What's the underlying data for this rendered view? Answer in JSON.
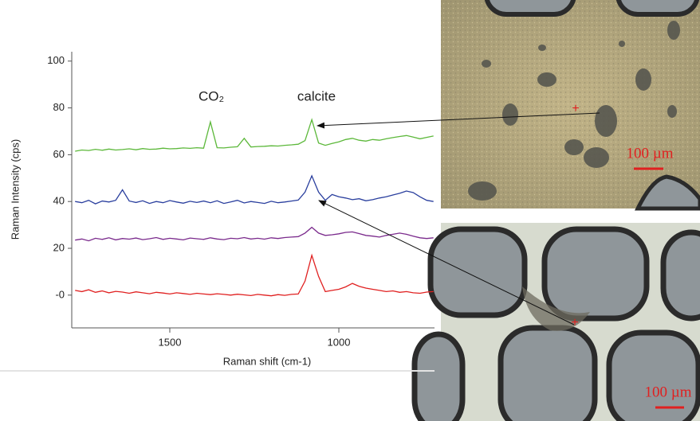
{
  "chart_data": {
    "type": "line",
    "ylabel": "Raman Intensity (cps)",
    "xlabel": "Raman shift (cm-1)",
    "annotations": [
      "CO₂",
      "calcite"
    ],
    "x": [
      1780,
      1760,
      1740,
      1720,
      1700,
      1680,
      1660,
      1640,
      1620,
      1600,
      1580,
      1560,
      1540,
      1520,
      1500,
      1480,
      1460,
      1440,
      1420,
      1400,
      1380,
      1360,
      1340,
      1320,
      1300,
      1280,
      1260,
      1240,
      1220,
      1200,
      1180,
      1160,
      1140,
      1120,
      1100,
      1080,
      1060,
      1040,
      1020,
      1000,
      980,
      960,
      940,
      920,
      900,
      880,
      860,
      840,
      820,
      800,
      780,
      760,
      740,
      720
    ],
    "series": [
      {
        "color": "#5cb83a",
        "values": [
          61.5,
          62,
          61.8,
          62.3,
          61.9,
          62.4,
          62,
          62.2,
          62.5,
          62.1,
          62.6,
          62.3,
          62.4,
          62.8,
          62.5,
          62.6,
          62.9,
          62.7,
          63,
          62.8,
          74,
          63,
          62.9,
          63.2,
          63.4,
          67,
          63.3,
          63.5,
          63.6,
          63.8,
          63.7,
          64,
          64.2,
          64.5,
          66,
          75,
          65,
          64,
          64.8,
          65.5,
          66.5,
          67,
          66.2,
          65.8,
          66.5,
          66.2,
          66.8,
          67.3,
          67.8,
          68.2,
          67.5,
          66.8,
          67.4,
          68
        ]
      },
      {
        "color": "#2a3f9e",
        "values": [
          40,
          39.5,
          40.5,
          39,
          40.2,
          39.8,
          40.5,
          45,
          40.2,
          39.6,
          40.3,
          39.2,
          40,
          39.5,
          40.4,
          39.8,
          39.3,
          40.1,
          39.6,
          40.2,
          39.5,
          40.3,
          39.2,
          39.8,
          40.5,
          39.4,
          40,
          39.6,
          39.2,
          40.1,
          39.5,
          39.8,
          40.2,
          40.6,
          44,
          51,
          44,
          40.5,
          43,
          42,
          41.5,
          40.8,
          41.2,
          40.3,
          40.8,
          41.5,
          42,
          42.8,
          43.5,
          44.5,
          43.8,
          42,
          40.5,
          40
        ]
      },
      {
        "color": "#7a2a8c",
        "values": [
          23.5,
          24,
          23.2,
          24.3,
          23.8,
          24.5,
          23.6,
          24.2,
          23.9,
          24.4,
          23.7,
          24.1,
          24.6,
          23.8,
          24.3,
          24,
          23.6,
          24.4,
          24.1,
          23.8,
          24.5,
          24,
          23.7,
          24.3,
          24.1,
          24.6,
          24,
          24.3,
          23.9,
          24.5,
          24.2,
          24.6,
          24.8,
          25,
          26.5,
          29,
          26.5,
          25.5,
          25.8,
          26.2,
          26.8,
          27,
          26.3,
          25.5,
          25.2,
          24.8,
          25.5,
          26,
          26.5,
          26,
          25.2,
          24.5,
          24.2,
          24.5
        ]
      },
      {
        "color": "#e02020",
        "values": [
          2,
          1.5,
          2.3,
          1.2,
          1.8,
          1,
          1.6,
          1.3,
          0.8,
          1.4,
          1,
          0.6,
          1.2,
          0.9,
          0.5,
          1,
          0.7,
          0.3,
          0.8,
          0.5,
          0.2,
          0.6,
          0.3,
          0,
          0.4,
          0.1,
          -0.2,
          0.3,
          0,
          -0.3,
          0.2,
          -0.1,
          0.3,
          0.5,
          6,
          17,
          8,
          1.5,
          2,
          2.5,
          3.5,
          5,
          3.8,
          3,
          2.5,
          2,
          1.5,
          1.8,
          1.2,
          1.5,
          1,
          0.8,
          1.3,
          1.5
        ]
      }
    ],
    "xlim": [
      1790,
      717
    ],
    "ylim": [
      -14,
      104
    ],
    "xticks": [
      1500,
      1000
    ],
    "yticks": [
      {
        "value": 0,
        "label": "-0"
      },
      20,
      40,
      60,
      80,
      100
    ]
  },
  "images": [
    {
      "scale_bar": "100 µm"
    },
    {
      "scale_bar": "100 µm"
    }
  ]
}
